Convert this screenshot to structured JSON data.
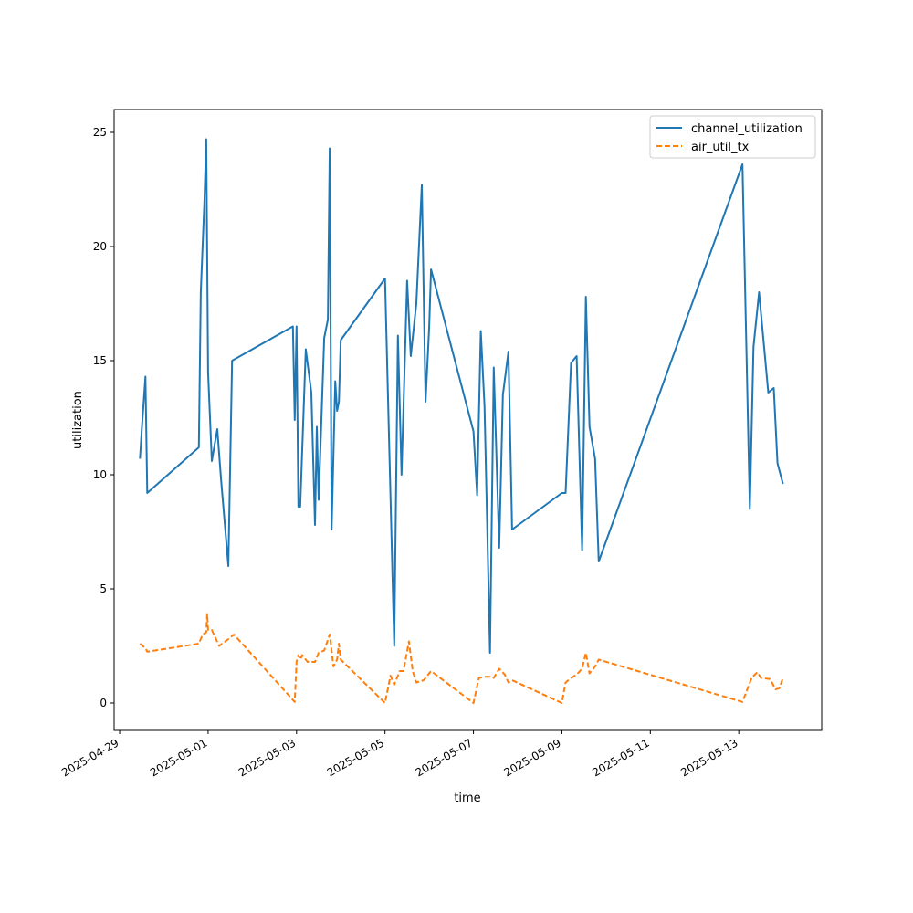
{
  "chart_data": {
    "type": "line",
    "xlabel": "time",
    "ylabel": "utilization",
    "x_type": "datetime",
    "xlim": [
      "2025-04-28T21:00",
      "2025-05-14T21:00"
    ],
    "ylim": [
      -1.2,
      26
    ],
    "x_ticks": [
      "2025-04-29",
      "2025-05-01",
      "2025-05-03",
      "2025-05-05",
      "2025-05-07",
      "2025-05-09",
      "2025-05-11",
      "2025-05-13"
    ],
    "y_ticks": [
      0,
      5,
      10,
      15,
      20,
      25
    ],
    "y_tick_labels": [
      "0",
      "5",
      "10",
      "15",
      "20",
      "25"
    ],
    "legend_position": "top-right",
    "grid": false,
    "series": [
      {
        "name": "channel_utilization",
        "color": "#1f77b4",
        "style": "solid",
        "points": [
          [
            "2025-04-29T11:00",
            10.7
          ],
          [
            "2025-04-29T12:00",
            12.0
          ],
          [
            "2025-04-29T14:00",
            14.3
          ],
          [
            "2025-04-29T15:00",
            9.2
          ],
          [
            "2025-04-30T19:00",
            11.2
          ],
          [
            "2025-04-30T20:00",
            18.0
          ],
          [
            "2025-04-30T22:00",
            22.0
          ],
          [
            "2025-04-30T23:00",
            24.7
          ],
          [
            "2025-05-01T00:00",
            14.5
          ],
          [
            "2025-05-01T02:00",
            10.6
          ],
          [
            "2025-05-01T05:00",
            12.0
          ],
          [
            "2025-05-01T07:00",
            9.8
          ],
          [
            "2025-05-01T11:00",
            6.0
          ],
          [
            "2025-05-01T13:00",
            15.0
          ],
          [
            "2025-05-02T22:00",
            16.5
          ],
          [
            "2025-05-02T23:00",
            12.4
          ],
          [
            "2025-05-03T00:00",
            16.5
          ],
          [
            "2025-05-03T01:00",
            8.6
          ],
          [
            "2025-05-03T02:00",
            8.6
          ],
          [
            "2025-05-03T05:00",
            15.5
          ],
          [
            "2025-05-03T08:00",
            13.6
          ],
          [
            "2025-05-03T10:00",
            7.8
          ],
          [
            "2025-05-03T11:00",
            12.1
          ],
          [
            "2025-05-03T12:00",
            8.9
          ],
          [
            "2025-05-03T15:00",
            16.0
          ],
          [
            "2025-05-03T17:00",
            16.8
          ],
          [
            "2025-05-03T18:00",
            24.3
          ],
          [
            "2025-05-03T19:00",
            7.6
          ],
          [
            "2025-05-03T21:00",
            14.1
          ],
          [
            "2025-05-03T22:00",
            12.8
          ],
          [
            "2025-05-03T23:00",
            13.2
          ],
          [
            "2025-05-04T00:00",
            15.9
          ],
          [
            "2025-05-05T00:00",
            18.6
          ],
          [
            "2025-05-05T05:00",
            2.5
          ],
          [
            "2025-05-05T07:00",
            16.1
          ],
          [
            "2025-05-05T09:00",
            10.0
          ],
          [
            "2025-05-05T12:00",
            18.5
          ],
          [
            "2025-05-05T14:00",
            15.2
          ],
          [
            "2025-05-05T17:00",
            17.5
          ],
          [
            "2025-05-05T20:00",
            22.7
          ],
          [
            "2025-05-05T22:00",
            13.2
          ],
          [
            "2025-05-06T00:00",
            16.5
          ],
          [
            "2025-05-06T01:00",
            19.0
          ],
          [
            "2025-05-07T00:00",
            11.9
          ],
          [
            "2025-05-07T02:00",
            9.1
          ],
          [
            "2025-05-07T04:00",
            16.3
          ],
          [
            "2025-05-07T06:00",
            13.0
          ],
          [
            "2025-05-07T09:00",
            2.2
          ],
          [
            "2025-05-07T11:00",
            14.7
          ],
          [
            "2025-05-07T14:00",
            6.8
          ],
          [
            "2025-05-07T16:00",
            13.5
          ],
          [
            "2025-05-07T19:00",
            15.4
          ],
          [
            "2025-05-07T21:00",
            7.6
          ],
          [
            "2025-05-09T00:00",
            9.2
          ],
          [
            "2025-05-09T02:00",
            9.2
          ],
          [
            "2025-05-09T05:00",
            14.9
          ],
          [
            "2025-05-09T08:00",
            15.2
          ],
          [
            "2025-05-09T11:00",
            6.7
          ],
          [
            "2025-05-09T13:00",
            17.8
          ],
          [
            "2025-05-09T15:00",
            12.1
          ],
          [
            "2025-05-09T18:00",
            10.7
          ],
          [
            "2025-05-09T20:00",
            6.2
          ],
          [
            "2025-05-13T02:00",
            23.6
          ],
          [
            "2025-05-13T06:00",
            8.5
          ],
          [
            "2025-05-13T08:00",
            15.6
          ],
          [
            "2025-05-13T11:00",
            18.0
          ],
          [
            "2025-05-13T16:00",
            13.6
          ],
          [
            "2025-05-13T19:00",
            13.8
          ],
          [
            "2025-05-13T21:00",
            10.5
          ],
          [
            "2025-05-14T00:00",
            9.6
          ]
        ]
      },
      {
        "name": "air_util_tx",
        "color": "#ff7f0e",
        "style": "dashed",
        "points": [
          [
            "2025-04-29T11:00",
            2.6
          ],
          [
            "2025-04-29T14:00",
            2.4
          ],
          [
            "2025-04-29T15:00",
            2.25
          ],
          [
            "2025-04-30T19:00",
            2.6
          ],
          [
            "2025-04-30T21:00",
            3.0
          ],
          [
            "2025-04-30T23:00",
            3.1
          ],
          [
            "2025-04-30T23:30",
            3.9
          ],
          [
            "2025-05-01T00:00",
            3.2
          ],
          [
            "2025-05-01T02:00",
            3.2
          ],
          [
            "2025-05-01T06:00",
            2.5
          ],
          [
            "2025-05-01T11:00",
            2.8
          ],
          [
            "2025-05-01T14:00",
            3.0
          ],
          [
            "2025-05-02T23:00",
            0.05
          ],
          [
            "2025-05-03T00:00",
            1.8
          ],
          [
            "2025-05-03T01:00",
            2.1
          ],
          [
            "2025-05-03T02:00",
            1.9
          ],
          [
            "2025-05-03T03:00",
            2.1
          ],
          [
            "2025-05-03T06:00",
            1.8
          ],
          [
            "2025-05-03T10:00",
            1.8
          ],
          [
            "2025-05-03T12:00",
            2.2
          ],
          [
            "2025-05-03T15:00",
            2.3
          ],
          [
            "2025-05-03T18:00",
            3.0
          ],
          [
            "2025-05-03T20:00",
            1.6
          ],
          [
            "2025-05-03T22:00",
            1.9
          ],
          [
            "2025-05-03T23:00",
            2.6
          ],
          [
            "2025-05-04T00:00",
            1.9
          ],
          [
            "2025-05-05T00:00",
            0.0
          ],
          [
            "2025-05-05T03:00",
            1.2
          ],
          [
            "2025-05-05T05:00",
            0.8
          ],
          [
            "2025-05-05T08:00",
            1.4
          ],
          [
            "2025-05-05T10:00",
            1.4
          ],
          [
            "2025-05-05T13:00",
            2.7
          ],
          [
            "2025-05-05T15:00",
            1.4
          ],
          [
            "2025-05-05T17:00",
            0.9
          ],
          [
            "2025-05-05T21:00",
            1.0
          ],
          [
            "2025-05-06T01:00",
            1.4
          ],
          [
            "2025-05-07T00:00",
            0.0
          ],
          [
            "2025-05-07T03:00",
            1.1
          ],
          [
            "2025-05-07T06:00",
            1.15
          ],
          [
            "2025-05-07T09:00",
            1.15
          ],
          [
            "2025-05-07T11:00",
            1.1
          ],
          [
            "2025-05-07T14:00",
            1.5
          ],
          [
            "2025-05-07T17:00",
            1.25
          ],
          [
            "2025-05-07T19:00",
            0.9
          ],
          [
            "2025-05-07T21:00",
            1.0
          ],
          [
            "2025-05-09T00:00",
            0.0
          ],
          [
            "2025-05-09T02:00",
            0.9
          ],
          [
            "2025-05-09T05:00",
            1.1
          ],
          [
            "2025-05-09T08:00",
            1.25
          ],
          [
            "2025-05-09T11:00",
            1.5
          ],
          [
            "2025-05-09T13:00",
            2.2
          ],
          [
            "2025-05-09T15:00",
            1.3
          ],
          [
            "2025-05-09T18:00",
            1.6
          ],
          [
            "2025-05-09T20:00",
            1.9
          ],
          [
            "2025-05-13T02:00",
            0.05
          ],
          [
            "2025-05-13T07:00",
            1.1
          ],
          [
            "2025-05-13T10:00",
            1.35
          ],
          [
            "2025-05-13T12:00",
            1.1
          ],
          [
            "2025-05-13T17:00",
            1.05
          ],
          [
            "2025-05-13T20:00",
            0.6
          ],
          [
            "2025-05-13T22:00",
            0.65
          ],
          [
            "2025-05-14T00:00",
            1.1
          ]
        ]
      }
    ]
  }
}
